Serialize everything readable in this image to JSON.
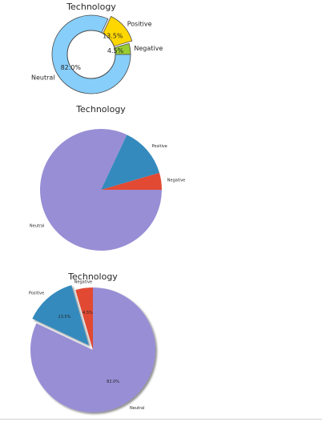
{
  "chart_data": [
    {
      "type": "pie",
      "variant": "donut",
      "title": "Technology",
      "categories": [
        "Neutral",
        "Positive",
        "Negative"
      ],
      "values": [
        82.0,
        13.5,
        4.5
      ],
      "percent_labels": [
        "82.0%",
        "13.5%",
        "4.5%"
      ],
      "colors": [
        "#87cefa",
        "#ffd700",
        "#9acd32"
      ],
      "exploded": "Positive",
      "edge_color": "#4a4a4a"
    },
    {
      "type": "pie",
      "title": "Technology",
      "categories": [
        "Neutral",
        "Positive",
        "Negative"
      ],
      "values": [
        82.0,
        13.5,
        4.5
      ],
      "colors": [
        "#988ed5",
        "#348abd",
        "#e24a33"
      ]
    },
    {
      "type": "pie",
      "title": "Technology",
      "categories": [
        "Neutral",
        "Positive",
        "Negative"
      ],
      "values": [
        82.0,
        13.5,
        4.5
      ],
      "percent_labels": [
        "82.0%",
        "13.5%",
        "4.5%"
      ],
      "colors": [
        "#988ed5",
        "#348abd",
        "#e24a33"
      ],
      "exploded": "Positive",
      "shadow": true
    }
  ]
}
